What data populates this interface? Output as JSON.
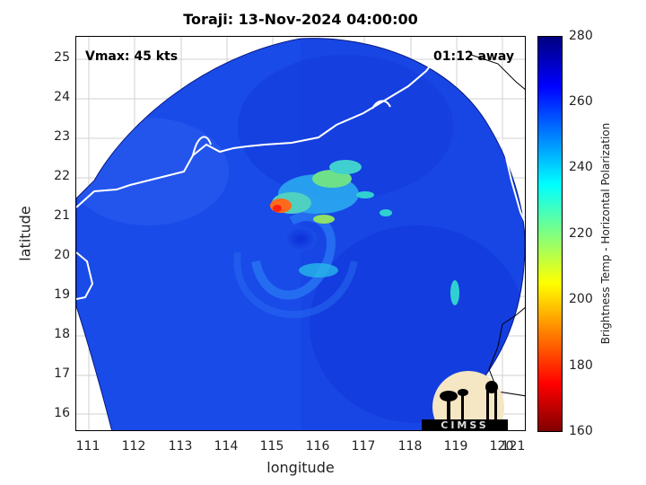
{
  "title": "Toraji: 13-Nov-2024 04:00:00",
  "vmax_label": "Vmax: 45 kts",
  "time_away_label": "01:12 away",
  "axes": {
    "xlabel": "longitude",
    "ylabel": "latitude",
    "xlim": [
      110.5,
      121.3
    ],
    "ylim": [
      15.6,
      25.6
    ],
    "xticks": [
      "111",
      "112",
      "113",
      "114",
      "115",
      "116",
      "117",
      "118",
      "119",
      "120",
      "121"
    ],
    "yticks": [
      "16",
      "17",
      "18",
      "19",
      "20",
      "21",
      "22",
      "23",
      "24",
      "25"
    ],
    "grid": true
  },
  "colorbar": {
    "label": "Brightness Temp - Horizontal Polarization",
    "ticks": [
      "160",
      "180",
      "200",
      "220",
      "240",
      "260",
      "280"
    ],
    "range": [
      160,
      280
    ],
    "colormap": "jet"
  },
  "logo_text": "CIMSS",
  "colors": {
    "background_swath": "#1646e6",
    "deep_blue": "#0a2ad0",
    "convection_cyan": "#27c8e6",
    "convection_green": "#8fe06a",
    "convection_core": "#ff5020",
    "coastline": "#ffffff",
    "land_outline": "#000000"
  }
}
